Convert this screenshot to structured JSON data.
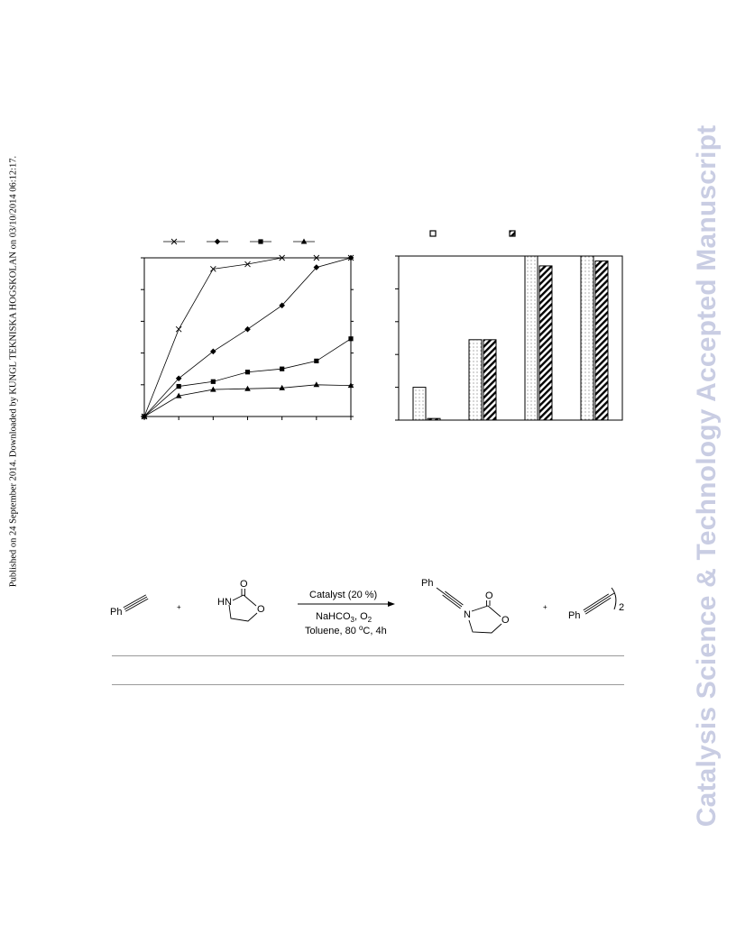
{
  "sidebar_left": "Published on 24 September 2014. Downloaded by KUNGL TEKNISKA HOGSKOLAN on 03/10/2014 06:12:17.",
  "watermark": "Catalysis Science & Technology Accepted Manuscript",
  "chart_data": [
    {
      "type": "line",
      "x": [
        0,
        1,
        2,
        3,
        4,
        5,
        6
      ],
      "ylim": [
        0,
        100
      ],
      "series": [
        {
          "marker": "x",
          "values": [
            0,
            55,
            93,
            96,
            100,
            100,
            100
          ]
        },
        {
          "marker": "diamond",
          "values": [
            0,
            24,
            41,
            55,
            70,
            94,
            100
          ]
        },
        {
          "marker": "square",
          "values": [
            0,
            19,
            22,
            28,
            30,
            35,
            49
          ]
        },
        {
          "marker": "triangle",
          "values": [
            0,
            13,
            17,
            17.5,
            18,
            20,
            19.5
          ]
        }
      ]
    },
    {
      "type": "bar",
      "categories": [
        "1",
        "2",
        "3",
        "4"
      ],
      "ylim": [
        0,
        100
      ],
      "series": [
        {
          "pattern": "dotted",
          "values": [
            20,
            49,
            100,
            100
          ]
        },
        {
          "pattern": "hatched",
          "values": [
            1,
            49,
            94,
            97
          ]
        }
      ]
    }
  ],
  "scheme": {
    "reactant1_label": "Ph",
    "plus1": "+",
    "reactant2_nh": "HN",
    "reactant2_o_carbonyl": "O",
    "reactant2_o_ring": "O",
    "arrow_top": "Catalyst (20 %)",
    "arrow_mid_main": "NaHCO",
    "arrow_mid_sub1": "3",
    "arrow_mid_sep": ", O",
    "arrow_mid_sub2": "2",
    "arrow_bottom_main": "Toluene, 80 ",
    "arrow_bottom_sup": "o",
    "arrow_bottom_tail": "C, 4h",
    "product_ph": "Ph",
    "product_n": "N",
    "product_o_carbonyl": "O",
    "product_o_ring": "O",
    "plus2": "+",
    "byproduct_ph": "Ph",
    "byproduct_mult": "2"
  }
}
